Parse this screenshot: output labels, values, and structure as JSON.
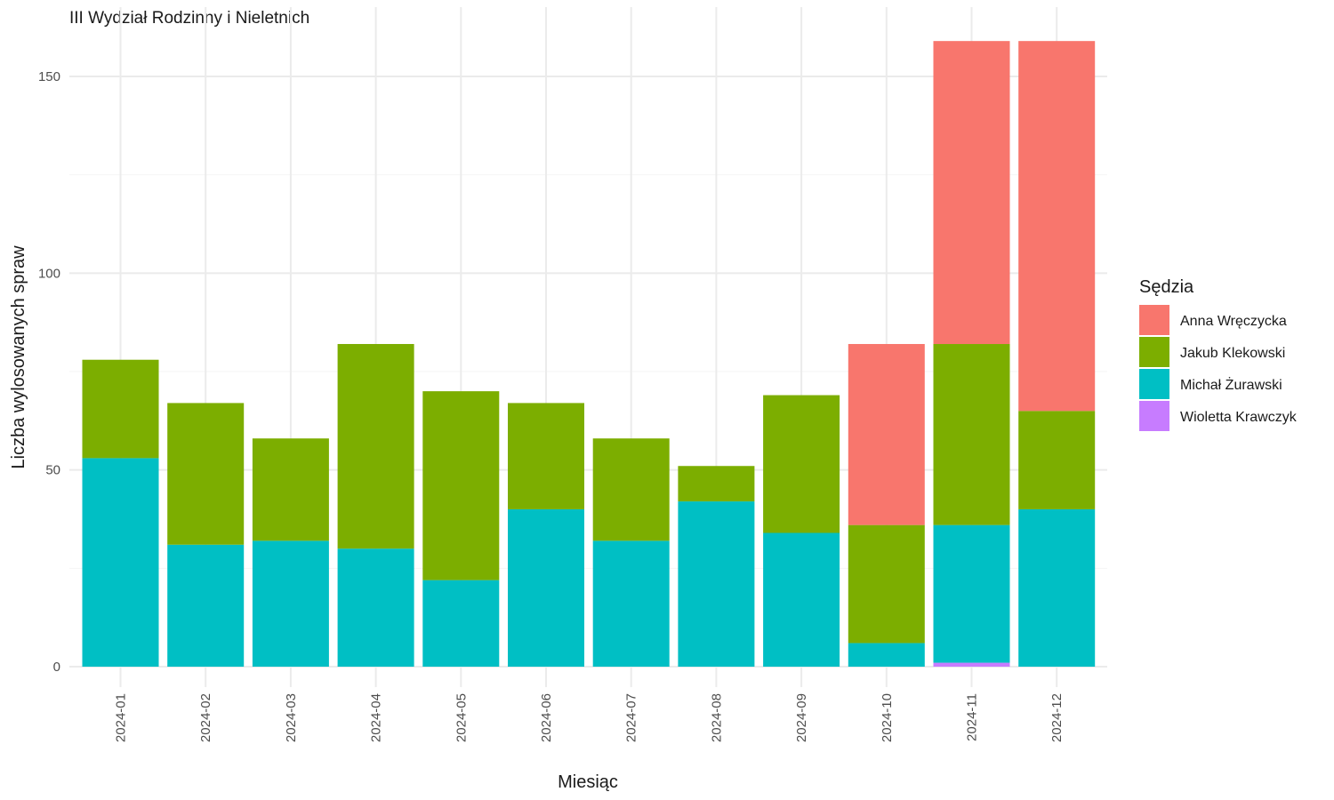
{
  "chart_data": {
    "type": "bar",
    "stacked": true,
    "title": "III Wydział Rodzinny i Nieletnich",
    "xlabel": "Miesiąc",
    "ylabel": "Liczba wylosowanych spraw",
    "ylim": [
      0,
      160
    ],
    "yticks": [
      0,
      50,
      100,
      150
    ],
    "grid": true,
    "legend": {
      "title": "Sędzia",
      "position": "right"
    },
    "categories": [
      "2024-01",
      "2024-02",
      "2024-03",
      "2024-04",
      "2024-05",
      "2024-06",
      "2024-07",
      "2024-08",
      "2024-09",
      "2024-10",
      "2024-11",
      "2024-12"
    ],
    "stack_order_bottom_to_top": [
      "Wioletta Krawczyk",
      "Michał Żurawski",
      "Jakub Klekowski",
      "Anna Wręczycka"
    ],
    "series": [
      {
        "name": "Anna Wręczycka",
        "color": "#F8766D",
        "values": [
          0,
          0,
          0,
          0,
          0,
          0,
          0,
          0,
          0,
          46,
          77,
          94
        ]
      },
      {
        "name": "Jakub Klekowski",
        "color": "#7CAE00",
        "values": [
          25,
          36,
          26,
          52,
          48,
          27,
          26,
          9,
          35,
          30,
          46,
          25
        ]
      },
      {
        "name": "Michał Żurawski",
        "color": "#00BFC4",
        "values": [
          53,
          31,
          32,
          30,
          22,
          40,
          32,
          42,
          34,
          6,
          35,
          40
        ]
      },
      {
        "name": "Wioletta Krawczyk",
        "color": "#C77CFF",
        "values": [
          0,
          0,
          0,
          0,
          0,
          0,
          0,
          0,
          0,
          0,
          1,
          0
        ]
      }
    ]
  }
}
